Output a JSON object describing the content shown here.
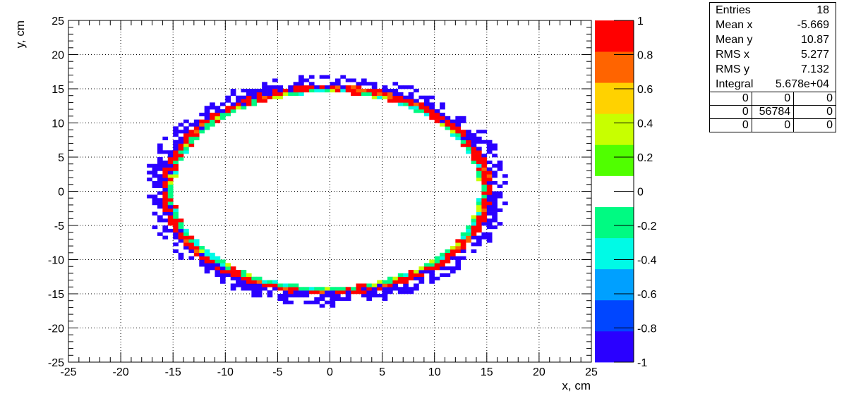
{
  "chart_data": {
    "type": "heatmap",
    "xlabel": "x, cm",
    "ylabel": "y, cm",
    "xlim": [
      -25,
      25
    ],
    "ylim": [
      -25,
      25
    ],
    "zlim": [
      -1,
      1
    ],
    "grid": true,
    "x_ticks": [
      -25,
      -20,
      -15,
      -10,
      -5,
      0,
      5,
      10,
      15,
      20,
      25
    ],
    "y_ticks": [
      -25,
      -20,
      -15,
      -10,
      -5,
      0,
      5,
      10,
      15,
      20,
      25
    ],
    "z_ticks": [
      "1",
      "0.8",
      "0.6",
      "0.4",
      "0.2",
      "0",
      "-0.2",
      "-0.4",
      "-0.6",
      "-0.8",
      "-1"
    ],
    "palette": [
      "#2a00ff",
      "#0046ff",
      "#00a0ff",
      "#00fae6",
      "#00fa82",
      "#ffffff",
      "#50ff00",
      "#c8ff00",
      "#ffd200",
      "#ff6400",
      "#ff0000"
    ],
    "ring": {
      "center_x": -0.3,
      "center_y": 0.2,
      "radius_x": 15.2,
      "radius_y": 14.8,
      "bin_size": 0.5
    }
  },
  "stats": {
    "rows": [
      {
        "label": "Entries",
        "value": "18"
      },
      {
        "label": "Mean x",
        "value": "-5.669"
      },
      {
        "label": "Mean y",
        "value": "10.87"
      },
      {
        "label": "RMS x",
        "value": "5.277"
      },
      {
        "label": "RMS y",
        "value": "7.132"
      },
      {
        "label": "Integral",
        "value": "5.678e+04"
      }
    ],
    "grid": [
      [
        "0",
        "0",
        "0"
      ],
      [
        "0",
        "56784",
        "0"
      ],
      [
        "0",
        "0",
        "0"
      ]
    ]
  }
}
